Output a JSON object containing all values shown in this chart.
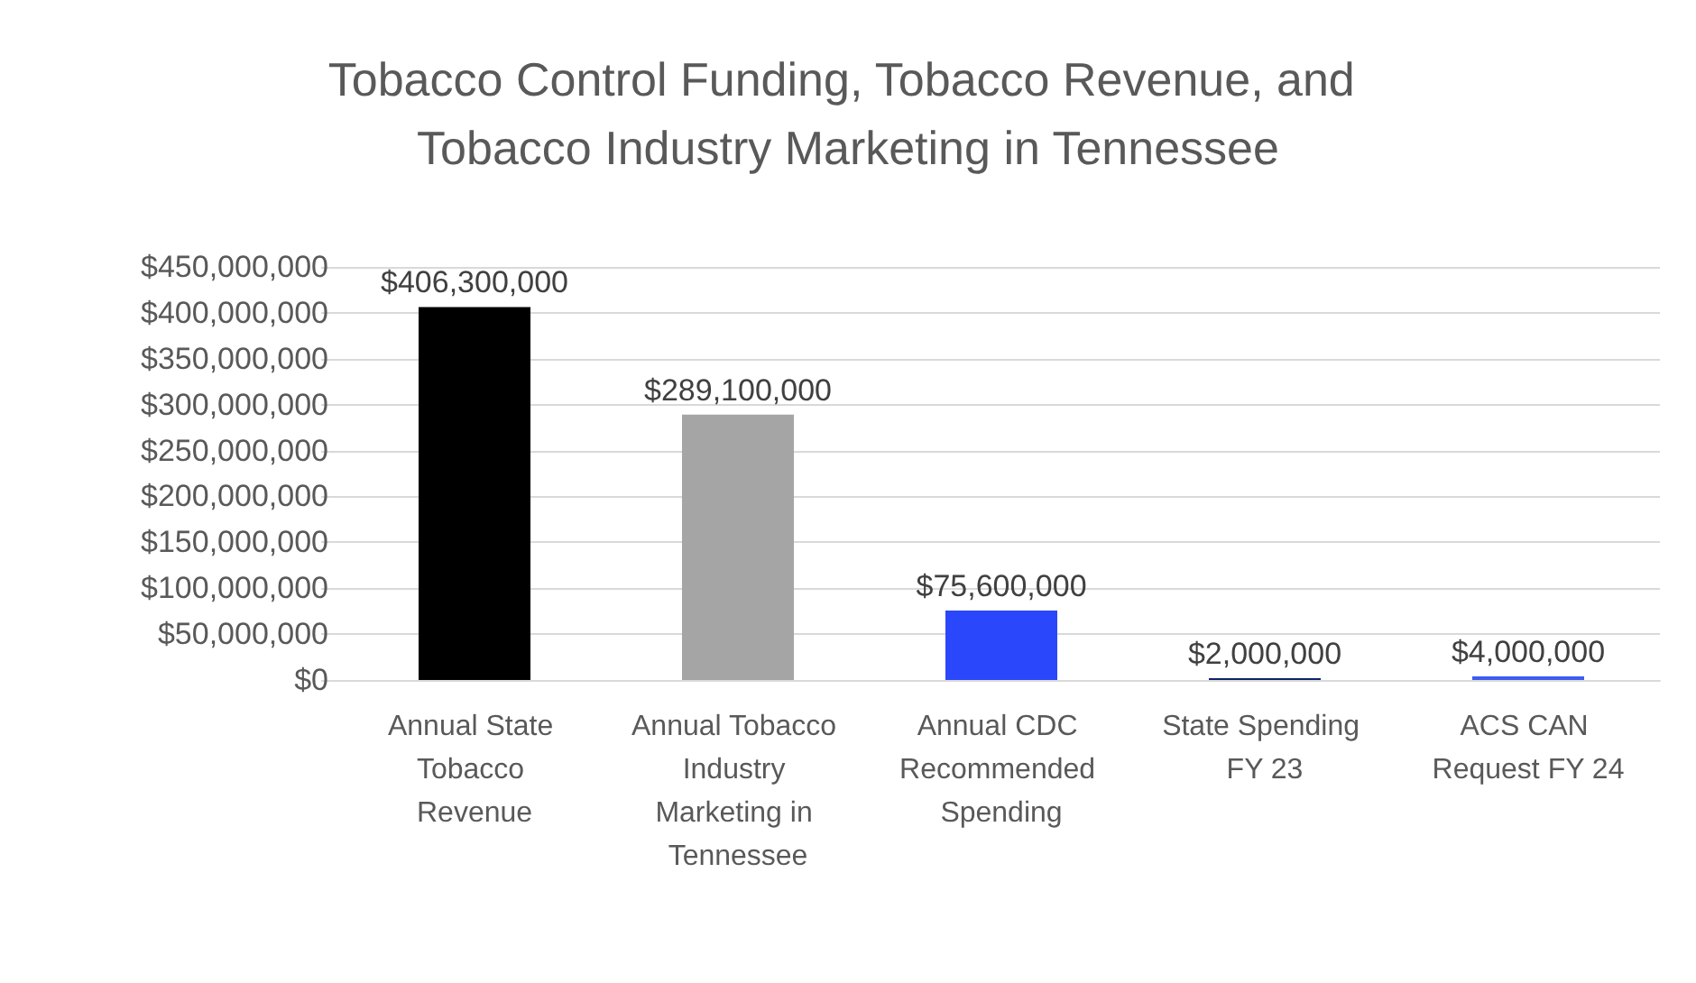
{
  "chart_data": {
    "type": "bar",
    "title": "Tobacco Control Funding, Tobacco Revenue, and Tobacco Industry Marketing in Tennessee",
    "categories": [
      "Annual State Tobacco Revenue",
      "Annual Tobacco Industry Marketing in Tennessee",
      "Annual CDC Recommended Spending",
      "State Spending FY 23",
      "ACS CAN Request FY 24"
    ],
    "values": [
      406300000,
      289100000,
      75600000,
      2000000,
      4000000
    ],
    "colors": [
      "#000000",
      "#a5a5a5",
      "#2b47fb",
      "#0f2466",
      "#3d5cf0"
    ],
    "value_labels": [
      "$406,300,000",
      "$289,100,000",
      "$75,600,000",
      "$2,000,000",
      "$4,000,000"
    ],
    "ylim": [
      0,
      450000000
    ],
    "yticks": [
      {
        "value": 0,
        "label": "$0"
      },
      {
        "value": 50000000,
        "label": "$50,000,000"
      },
      {
        "value": 100000000,
        "label": "$100,000,000"
      },
      {
        "value": 150000000,
        "label": "$150,000,000"
      },
      {
        "value": 200000000,
        "label": "$200,000,000"
      },
      {
        "value": 250000000,
        "label": "$250,000,000"
      },
      {
        "value": 300000000,
        "label": "$300,000,000"
      },
      {
        "value": 350000000,
        "label": "$350,000,000"
      },
      {
        "value": 400000000,
        "label": "$400,000,000"
      },
      {
        "value": 450000000,
        "label": "$450,000,000"
      }
    ],
    "grid": true
  }
}
